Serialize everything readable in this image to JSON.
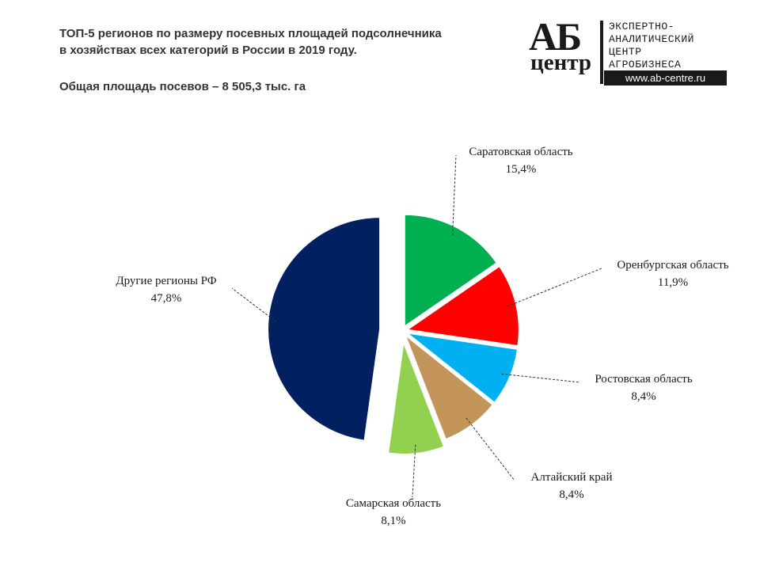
{
  "header": {
    "title_line1": "ТОП-5 регионов по размеру посевных площадей подсолнечника",
    "title_line2": "в хозяйствах всех категорий в России в 2019 году.",
    "subtitle": "Общая площадь посевов – 8 505,3 тыс. га"
  },
  "logo": {
    "mark": "АБ",
    "mark_sub": "центр",
    "text_line1": "ЭКСПЕРТНО-",
    "text_line2": "АНАЛИТИЧЕСКИЙ",
    "text_line3": "ЦЕНТР",
    "text_line4": "АГРОБИЗНЕСА",
    "url": "www.ab-centre.ru"
  },
  "chart_data": {
    "type": "pie",
    "title": "ТОП-5 регионов по размеру посевных площадей подсолнечника в хозяйствах всех категорий в России в 2019 году.",
    "subtitle": "Общая площадь посевов – 8 505,3 тыс. га",
    "slices": [
      {
        "name": "Саратовская область",
        "value": 15.4,
        "label": "15,4%",
        "color": "#00b050"
      },
      {
        "name": "Оренбургская область",
        "value": 11.9,
        "label": "11,9%",
        "color": "#ff0000"
      },
      {
        "name": "Ростовская область",
        "value": 8.4,
        "label": "8,4%",
        "color": "#00b0f0"
      },
      {
        "name": "Алтайский край",
        "value": 8.4,
        "label": "8,4%",
        "color": "#c4955a"
      },
      {
        "name": "Самарская область",
        "value": 8.1,
        "label": "8,1%",
        "color": "#92d050"
      },
      {
        "name": "Другие регионы РФ",
        "value": 47.8,
        "label": "47,8%",
        "color": "#002060"
      }
    ]
  }
}
